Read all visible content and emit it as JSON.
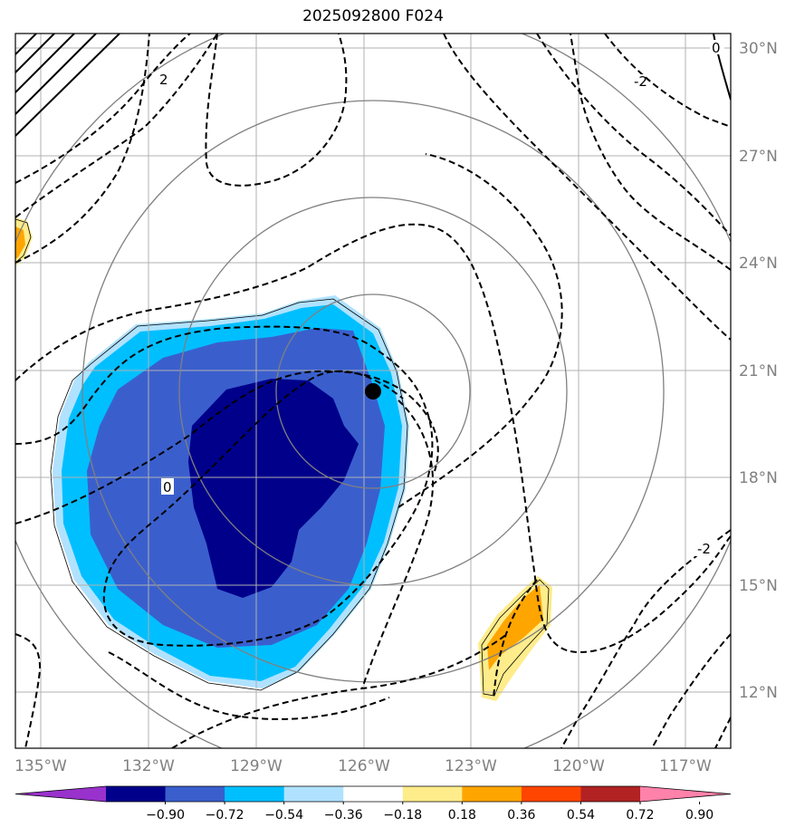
{
  "title": "2025092800 F024",
  "lon_labels": [
    "135°W",
    "132°W",
    "129°W",
    "126°W",
    "123°W",
    "120°W",
    "117°W"
  ],
  "lat_labels": [
    "30°N",
    "27°N",
    "24°N",
    "21°N",
    "18°N",
    "15°N",
    "12°N"
  ],
  "contour_labels": [
    "2",
    "0",
    "-2",
    "0",
    "-2"
  ],
  "colorbar": {
    "ticks": [
      "−0.90",
      "−0.72",
      "−0.54",
      "−0.36",
      "−0.18",
      "0.18",
      "0.36",
      "0.54",
      "0.72",
      "0.90"
    ],
    "colors": [
      "#9932cc",
      "#00008b",
      "#3a5fcd",
      "#00bfff",
      "#b0e2ff",
      "#ffffff",
      "#ffec8b",
      "#ffa500",
      "#ff4500",
      "#b22222",
      "#ff82ab"
    ]
  },
  "storm_center": {
    "lon": -126.0,
    "lat": 20.4
  }
}
